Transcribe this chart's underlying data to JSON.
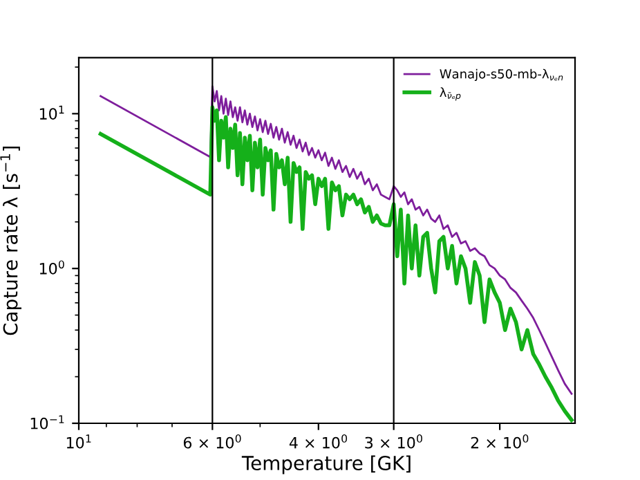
{
  "chart_data": {
    "type": "line",
    "xlabel": "Temperature [GK]",
    "ylabel": "Capture rate λ [s$^{−1}$]",
    "log": "xy",
    "legend": "top right",
    "grid": false,
    "xlim": [
      10,
      1.5
    ],
    "ylim": [
      0.1,
      23
    ],
    "xticks": [
      {
        "value": 10,
        "label": "10$^{1}$"
      },
      {
        "value": 6,
        "label": "6 × 10$^{0}$"
      },
      {
        "value": 4,
        "label": "4 × 10$^{0}$"
      },
      {
        "value": 3,
        "label": "3 × 10$^{0}$"
      },
      {
        "value": 2,
        "label": "2 × 10$^{0}$"
      }
    ],
    "yticks": [
      {
        "value": 0.1,
        "label": "10$^{−1}$"
      },
      {
        "value": 1,
        "label": "10$^{0}$"
      },
      {
        "value": 10,
        "label": "10$^{1}$"
      }
    ],
    "ref_lines": [
      {
        "axis": "x",
        "value": 6,
        "color": "#000000"
      },
      {
        "axis": "x",
        "value": 3,
        "color": "#000000"
      }
    ],
    "x": [
      9.2,
      6.05,
      6.0,
      5.95,
      5.9,
      5.85,
      5.8,
      5.75,
      5.7,
      5.65,
      5.6,
      5.55,
      5.5,
      5.45,
      5.4,
      5.35,
      5.3,
      5.25,
      5.2,
      5.15,
      5.1,
      5.05,
      5.0,
      4.95,
      4.9,
      4.85,
      4.8,
      4.75,
      4.7,
      4.65,
      4.6,
      4.55,
      4.5,
      4.45,
      4.4,
      4.35,
      4.3,
      4.25,
      4.2,
      4.15,
      4.1,
      4.05,
      4.0,
      3.95,
      3.9,
      3.85,
      3.8,
      3.75,
      3.7,
      3.65,
      3.6,
      3.55,
      3.5,
      3.45,
      3.4,
      3.35,
      3.3,
      3.25,
      3.2,
      3.15,
      3.1,
      3.05,
      3.0,
      2.96,
      2.92,
      2.88,
      2.84,
      2.8,
      2.76,
      2.72,
      2.68,
      2.64,
      2.6,
      2.56,
      2.52,
      2.48,
      2.44,
      2.4,
      2.36,
      2.32,
      2.28,
      2.24,
      2.2,
      2.16,
      2.12,
      2.08,
      2.04,
      2.0,
      1.96,
      1.92,
      1.88,
      1.84,
      1.8,
      1.76,
      1.72,
      1.68,
      1.64,
      1.6,
      1.56,
      1.52
    ],
    "series": [
      {
        "name": "Wanajo-s50-mb-λ$_{νₑn}$",
        "color": "#7e1e9c",
        "values": [
          13.0,
          5.25,
          15.0,
          12,
          14,
          10.5,
          13,
          10,
          12.5,
          9.8,
          12,
          9.5,
          11,
          9,
          11,
          8.8,
          10.5,
          8.5,
          10,
          8.2,
          9.6,
          7.8,
          9.2,
          7.6,
          9,
          7.4,
          8.6,
          7,
          8.2,
          6.8,
          8,
          6.5,
          7.6,
          6.3,
          7.2,
          6,
          6.8,
          5.7,
          6.5,
          5.4,
          6,
          5.2,
          5.8,
          5,
          5.6,
          4.6,
          5.2,
          4.4,
          5,
          4.2,
          4.6,
          3.9,
          4.4,
          3.8,
          4.2,
          3.5,
          3.8,
          3.2,
          3.5,
          3.0,
          2.9,
          2.8,
          3.4,
          3.2,
          2.9,
          3.1,
          2.6,
          2.8,
          2.4,
          2.5,
          2.2,
          2.4,
          2.1,
          2.0,
          2.2,
          1.8,
          1.9,
          1.6,
          1.7,
          1.45,
          1.5,
          1.3,
          1.35,
          1.25,
          1.2,
          1.05,
          1.0,
          0.9,
          0.85,
          0.75,
          0.7,
          0.62,
          0.55,
          0.48,
          0.4,
          0.33,
          0.27,
          0.22,
          0.18,
          0.155
        ]
      },
      {
        "name": "λ$_{ν̄ₑp}$",
        "color": "#15b01a",
        "values": [
          7.4,
          3.0,
          11.0,
          9,
          10.5,
          5,
          9,
          7,
          9.5,
          4.5,
          8,
          6,
          8.5,
          4,
          7.5,
          3.5,
          7,
          5,
          7.2,
          3.2,
          6.5,
          4.5,
          6.8,
          3,
          6,
          5,
          5.8,
          2.4,
          5.5,
          4.5,
          5,
          3.5,
          5.2,
          2,
          4.8,
          4.2,
          4.5,
          1.8,
          4.2,
          3.8,
          4,
          2.6,
          3.8,
          3.4,
          3.8,
          1.8,
          3.6,
          3.2,
          3.4,
          2.2,
          3.0,
          2.8,
          3.0,
          2.6,
          2.8,
          2.3,
          2.5,
          2.0,
          2.2,
          1.95,
          1.9,
          1.9,
          2.6,
          1.2,
          2.4,
          0.8,
          2.2,
          1.0,
          1.9,
          0.9,
          1.6,
          1.7,
          1.0,
          0.7,
          1.5,
          1.6,
          1.0,
          1.4,
          0.8,
          1.2,
          1.0,
          0.6,
          1.1,
          0.9,
          0.45,
          0.85,
          0.7,
          0.6,
          0.4,
          0.55,
          0.45,
          0.3,
          0.4,
          0.28,
          0.24,
          0.2,
          0.17,
          0.14,
          0.12,
          0.105
        ]
      }
    ]
  }
}
